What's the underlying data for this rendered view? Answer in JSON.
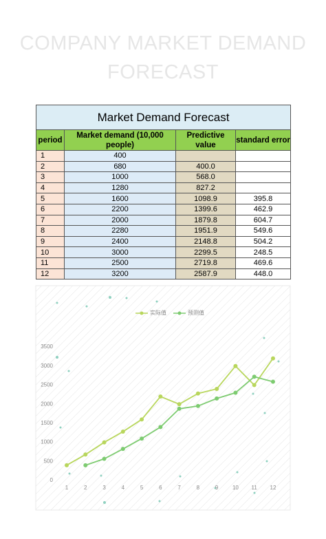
{
  "header": {
    "title": "COMPANY MARKET DEMAND FORECAST"
  },
  "table": {
    "title": "Market Demand Forecast",
    "columns": [
      "period",
      "Market demand (10,000 people)",
      "Predictive value",
      "standard error"
    ],
    "rows": [
      [
        "1",
        "400",
        null,
        null
      ],
      [
        "2",
        "680",
        "400.0",
        null
      ],
      [
        "3",
        "1000",
        "568.0",
        null
      ],
      [
        "4",
        "1280",
        "827.2",
        null
      ],
      [
        "5",
        "1600",
        "1098.9",
        "395.8"
      ],
      [
        "6",
        "2200",
        "1399.6",
        "462.9"
      ],
      [
        "7",
        "2000",
        "1879.8",
        "604.7"
      ],
      [
        "8",
        "2280",
        "1951.9",
        "549.6"
      ],
      [
        "9",
        "2400",
        "2148.8",
        "504.2"
      ],
      [
        "10",
        "3000",
        "2299.5",
        "248.5"
      ],
      [
        "11",
        "2500",
        "2719.8",
        "469.6"
      ],
      [
        "12",
        "3200",
        "2587.9",
        "448.0"
      ]
    ]
  },
  "chart_data": {
    "type": "line",
    "categories": [
      "1",
      "2",
      "3",
      "4",
      "5",
      "6",
      "7",
      "8",
      "9",
      "10",
      "11",
      "12"
    ],
    "series": [
      {
        "name": "实际值",
        "color": "#b8d65c",
        "values": [
          400,
          680,
          1000,
          1280,
          1600,
          2200,
          2000,
          2280,
          2400,
          3000,
          2500,
          3200
        ]
      },
      {
        "name": "预测值",
        "color": "#7dcb70",
        "values": [
          null,
          400,
          568,
          827.2,
          1098.9,
          1399.6,
          1879.8,
          1951.9,
          2148.8,
          2299.5,
          2719.8,
          2587.9
        ]
      }
    ],
    "ylim": [
      0,
      3500
    ],
    "yticks": [
      0,
      500,
      1000,
      1500,
      2000,
      2500,
      3000,
      3500
    ],
    "legend": "top"
  }
}
